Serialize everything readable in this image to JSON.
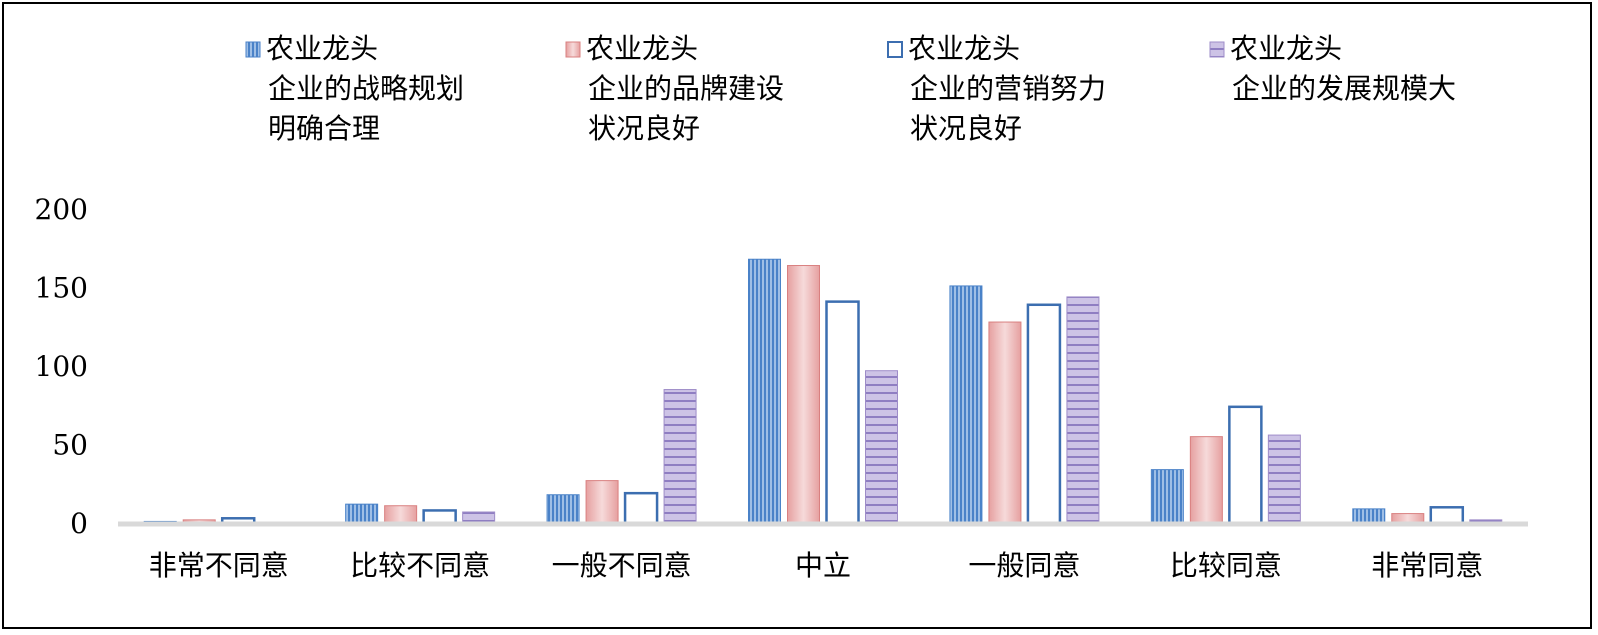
{
  "chart_data": {
    "type": "bar",
    "categories": [
      "非常不同意",
      "比较不同意",
      "一般不同意",
      "中立",
      "一般同意",
      "比较同意",
      "非常同意"
    ],
    "series": [
      {
        "name": [
          "农业龙头",
          "企业的战略规划",
          "明确合理"
        ],
        "values": [
          1,
          12,
          18,
          168,
          151,
          34,
          9
        ],
        "color": "#5b8fd0",
        "pattern": "vertical-stripes"
      },
      {
        "name": [
          "农业龙头",
          "企业的品牌建设",
          "状况良好"
        ],
        "values": [
          2,
          11,
          27,
          164,
          128,
          55,
          6
        ],
        "color": "#e08a8a",
        "pattern": "gradient"
      },
      {
        "name": [
          "农业龙头",
          "企业的营销努力",
          "状况良好"
        ],
        "values": [
          3,
          8,
          19,
          141,
          139,
          74,
          10
        ],
        "color": "#3c6eb0",
        "pattern": "outline"
      },
      {
        "name": [
          "农业龙头",
          "企业的发展规模大"
        ],
        "values": [
          0,
          7,
          85,
          97,
          144,
          56,
          2
        ],
        "color": "#9e8cc8",
        "pattern": "horizontal-stripes"
      }
    ],
    "y_ticks": [
      "0",
      "50",
      "100",
      "150",
      "200"
    ],
    "ylim": [
      0,
      200
    ],
    "legend_position": "top",
    "grid": false
  }
}
